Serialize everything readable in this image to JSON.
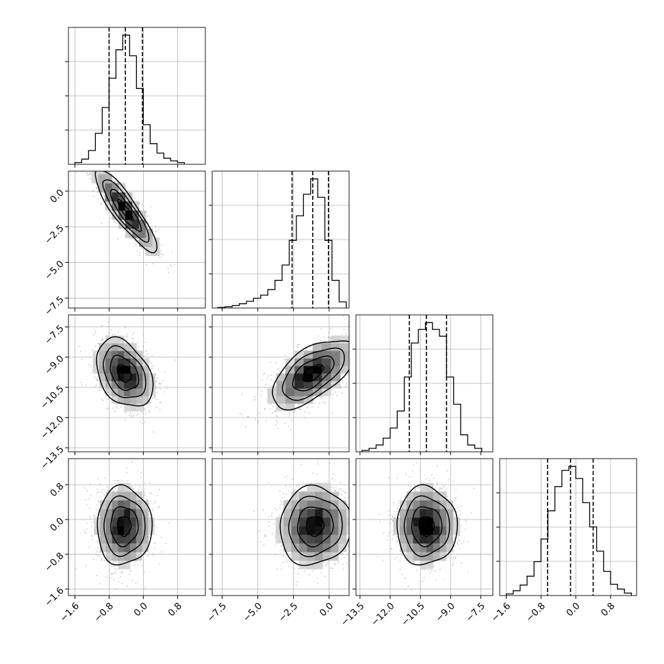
{
  "chart_data": {
    "type": "corner",
    "n_parameters": 4,
    "colors": {
      "hist": "#000000",
      "grid": "#b0b0b0",
      "scatter": "#999999",
      "contour": "#000000"
    },
    "parameters": [
      {
        "index": 0,
        "range": [
          -1.75,
          1.45
        ],
        "ticks": [
          -1.6,
          -0.8,
          0.0,
          0.8
        ],
        "tick_labels": [
          "−1.6",
          "−0.8",
          "0.0",
          "0.8"
        ],
        "quantiles": [
          -0.8,
          -0.42,
          -0.02
        ],
        "hist_edges": [
          -1.6,
          -1.44,
          -1.28,
          -1.12,
          -0.96,
          -0.8,
          -0.64,
          -0.48,
          -0.32,
          -0.16,
          0.0,
          0.16,
          0.32,
          0.48,
          0.64,
          0.8,
          0.96
        ],
        "hist_counts": [
          2,
          6,
          16,
          36,
          66,
          100,
          133,
          150,
          126,
          88,
          46,
          24,
          13,
          7,
          4,
          2
        ]
      },
      {
        "index": 1,
        "range": [
          -8.2,
          1.4
        ],
        "ticks": [
          -7.5,
          -5.0,
          -2.5,
          0.0
        ],
        "tick_labels": [
          "−7.5",
          "−5.0",
          "−2.5",
          "0.0"
        ],
        "quantiles": [
          -2.6,
          -1.15,
          -0.05
        ],
        "hist_edges": [
          -7.8,
          -7.3,
          -6.8,
          -6.3,
          -5.8,
          -5.3,
          -4.8,
          -4.3,
          -3.8,
          -3.3,
          -2.8,
          -2.3,
          -1.8,
          -1.3,
          -0.8,
          -0.3,
          0.2,
          0.7,
          1.2
        ],
        "hist_counts": [
          1,
          2,
          4,
          7,
          11,
          16,
          21,
          30,
          45,
          70,
          110,
          150,
          185,
          210,
          180,
          110,
          45,
          10
        ]
      },
      {
        "index": 2,
        "range": [
          -13.7,
          -6.9
        ],
        "ticks": [
          -13.5,
          -12.0,
          -10.5,
          -9.0,
          -7.5
        ],
        "tick_labels": [
          "−13.5",
          "−12.0",
          "−10.5",
          "−9.0",
          "−7.5"
        ],
        "quantiles": [
          -11.05,
          -10.2,
          -9.2
        ],
        "hist_edges": [
          -13.4,
          -13.05,
          -12.7,
          -12.35,
          -12.0,
          -11.65,
          -11.3,
          -10.95,
          -10.6,
          -10.25,
          -9.9,
          -9.55,
          -9.2,
          -8.85,
          -8.5,
          -8.15,
          -7.8,
          -7.45
        ],
        "hist_counts": [
          2,
          5,
          10,
          20,
          35,
          60,
          110,
          160,
          180,
          190,
          180,
          170,
          110,
          70,
          25,
          10,
          5
        ]
      },
      {
        "index": 3,
        "range": [
          -1.75,
          1.4
        ],
        "ticks": [
          -1.6,
          -0.8,
          0.0,
          0.8
        ],
        "tick_labels": [
          "−1.6",
          "−0.8",
          "0.0",
          "0.8"
        ],
        "quantiles": [
          -0.65,
          -0.12,
          0.4
        ],
        "hist_edges": [
          -1.6,
          -1.44,
          -1.28,
          -1.12,
          -0.96,
          -0.8,
          -0.64,
          -0.48,
          -0.32,
          -0.16,
          0.0,
          0.16,
          0.32,
          0.48,
          0.64,
          0.8,
          0.96,
          1.12,
          1.28
        ],
        "hist_counts": [
          2,
          6,
          13,
          24,
          42,
          70,
          105,
          135,
          155,
          160,
          145,
          115,
          85,
          55,
          30,
          14,
          8,
          3
        ]
      }
    ],
    "pairs": [
      {
        "x": 0,
        "y": 1,
        "mean": [
          -0.42,
          -1.35
        ],
        "sd": [
          0.36,
          1.45
        ],
        "corr": -0.88,
        "contour_levels": [
          0.5,
          1.0,
          1.5,
          2.0
        ]
      },
      {
        "x": 0,
        "y": 2,
        "mean": [
          -0.45,
          -9.8
        ],
        "sd": [
          0.33,
          0.85
        ],
        "corr": -0.35,
        "contour_levels": [
          0.5,
          1.0,
          1.5,
          2.0
        ]
      },
      {
        "x": 1,
        "y": 2,
        "mean": [
          -1.15,
          -9.8
        ],
        "sd": [
          1.45,
          0.85
        ],
        "corr": 0.6,
        "contour_levels": [
          0.5,
          1.0,
          1.5,
          2.0
        ]
      },
      {
        "x": 0,
        "y": 3,
        "mean": [
          -0.45,
          -0.15
        ],
        "sd": [
          0.32,
          0.45
        ],
        "corr": 0.0,
        "contour_levels": [
          0.5,
          1.0,
          1.5,
          2.0
        ]
      },
      {
        "x": 1,
        "y": 3,
        "mean": [
          -1.0,
          -0.15
        ],
        "sd": [
          1.25,
          0.45
        ],
        "corr": 0.05,
        "contour_levels": [
          0.5,
          1.0,
          1.5,
          2.0
        ]
      },
      {
        "x": 2,
        "y": 3,
        "mean": [
          -10.2,
          -0.15
        ],
        "sd": [
          0.75,
          0.45
        ],
        "corr": 0.0,
        "contour_levels": [
          0.5,
          1.0,
          1.5,
          2.0
        ]
      }
    ]
  }
}
